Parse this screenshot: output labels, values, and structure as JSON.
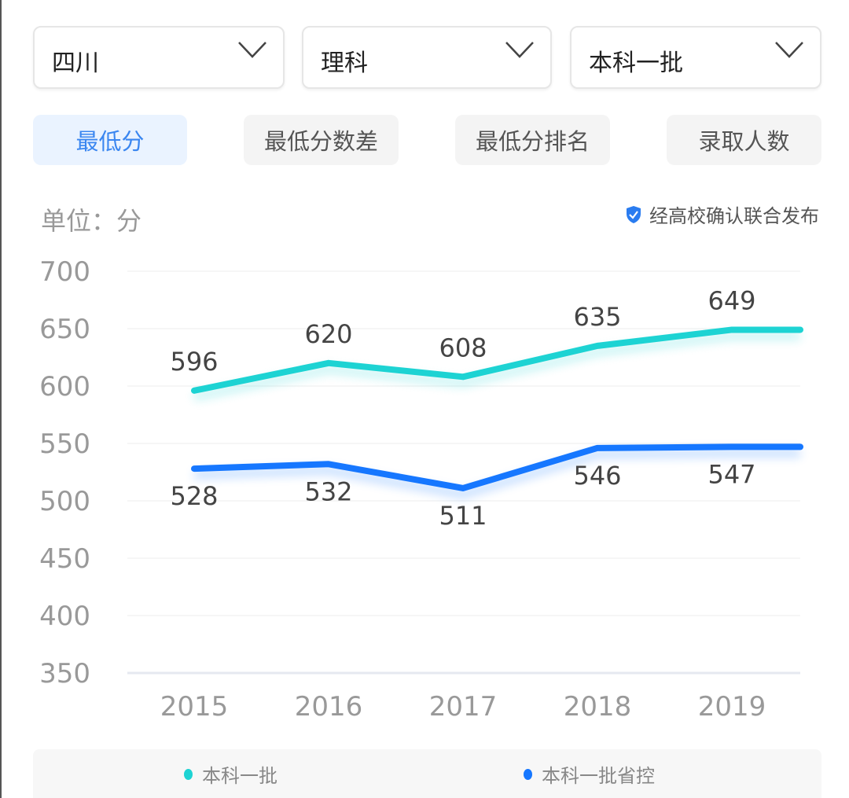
{
  "filters": [
    {
      "value": "四川"
    },
    {
      "value": "理科"
    },
    {
      "value": "本科一批"
    }
  ],
  "tabs": [
    {
      "label": "最低分",
      "active": true
    },
    {
      "label": "最低分数差",
      "active": false
    },
    {
      "label": "最低分排名",
      "active": false
    },
    {
      "label": "录取人数",
      "active": false
    }
  ],
  "unit_label": "单位：分",
  "certification": {
    "text": "经高校确认联合发布",
    "icon": "shield-check-icon"
  },
  "colors": {
    "accent": "#3a86f0",
    "series1": "#1dd3d3",
    "series2": "#1677ff"
  },
  "chart_data": {
    "type": "line",
    "categories": [
      "2015",
      "2016",
      "2017",
      "2018",
      "2019"
    ],
    "ylim": [
      350,
      700
    ],
    "yticks": [
      "350",
      "400",
      "450",
      "500",
      "550",
      "600",
      "650",
      "700"
    ],
    "grid": true,
    "legend_position": "bottom",
    "series": [
      {
        "name": "本科一批",
        "values": [
          596,
          620,
          608,
          635,
          649
        ],
        "color": "#1dd3d3",
        "labels_position": "above"
      },
      {
        "name": "本科一批省控",
        "values": [
          528,
          532,
          511,
          546,
          547
        ],
        "color": "#1677ff",
        "labels_position": "below"
      }
    ]
  }
}
